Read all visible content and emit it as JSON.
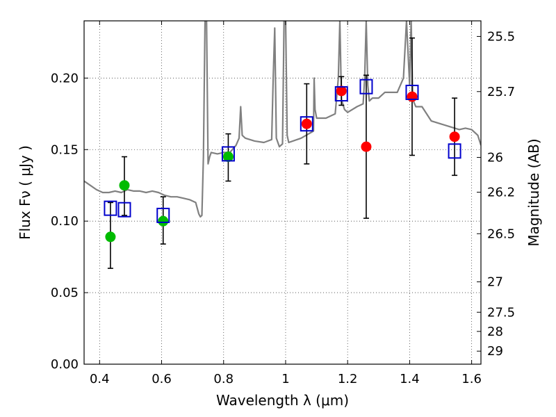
{
  "chart_data": {
    "type": "scatter",
    "xlabel": "Wavelength  λ (μm)",
    "ylabel": "Flux  Fν  ( μJy )",
    "ylabel_right": "Magnitude (AB)",
    "xlim": [
      0.35,
      1.63
    ],
    "ylim": [
      0.0,
      0.24
    ],
    "grid": true,
    "x_ticks": [
      0.4,
      0.6,
      0.8,
      1.0,
      1.2,
      1.4,
      1.6
    ],
    "x_tick_labels": [
      "0.4",
      "0.6",
      "0.8",
      "1",
      "1.2",
      "1.4",
      "1.6"
    ],
    "y_ticks": [
      0.0,
      0.05,
      0.1,
      0.15,
      0.2
    ],
    "y_tick_labels": [
      "0.00",
      "0.05",
      "0.10",
      "0.15",
      "0.20"
    ],
    "right_ticks": [
      {
        "mag": 25.5,
        "label": "25.5"
      },
      {
        "mag": 25.7,
        "label": "25.7"
      },
      {
        "mag": 26.0,
        "label": "26"
      },
      {
        "mag": 26.2,
        "label": "26.2"
      },
      {
        "mag": 26.5,
        "label": "26.5"
      },
      {
        "mag": 27.0,
        "label": "27"
      },
      {
        "mag": 27.5,
        "label": "27.5"
      },
      {
        "mag": 28.0,
        "label": "28"
      },
      {
        "mag": 29.0,
        "label": "29"
      }
    ],
    "series": [
      {
        "name": "model spectrum",
        "kind": "line",
        "color": "#808080",
        "x": [
          0.35,
          0.37,
          0.39,
          0.41,
          0.43,
          0.45,
          0.47,
          0.49,
          0.51,
          0.53,
          0.55,
          0.57,
          0.59,
          0.61,
          0.63,
          0.65,
          0.67,
          0.69,
          0.71,
          0.72,
          0.725,
          0.73,
          0.735,
          0.74,
          0.745,
          0.75,
          0.755,
          0.76,
          0.78,
          0.8,
          0.82,
          0.84,
          0.85,
          0.855,
          0.86,
          0.87,
          0.9,
          0.93,
          0.955,
          0.96,
          0.965,
          0.97,
          0.98,
          0.99,
          0.995,
          1.0,
          1.005,
          1.01,
          1.05,
          1.09,
          1.092,
          1.095,
          1.1,
          1.13,
          1.16,
          1.17,
          1.175,
          1.18,
          1.19,
          1.2,
          1.23,
          1.25,
          1.255,
          1.26,
          1.265,
          1.27,
          1.28,
          1.3,
          1.32,
          1.36,
          1.38,
          1.39,
          1.4,
          1.405,
          1.41,
          1.42,
          1.44,
          1.47,
          1.5,
          1.53,
          1.56,
          1.58,
          1.6,
          1.62,
          1.63
        ],
        "y": [
          0.128,
          0.125,
          0.122,
          0.12,
          0.12,
          0.121,
          0.12,
          0.122,
          0.121,
          0.121,
          0.12,
          0.121,
          0.12,
          0.118,
          0.117,
          0.117,
          0.116,
          0.115,
          0.113,
          0.105,
          0.103,
          0.104,
          0.145,
          0.24,
          0.24,
          0.14,
          0.145,
          0.148,
          0.147,
          0.148,
          0.148,
          0.153,
          0.158,
          0.18,
          0.16,
          0.158,
          0.156,
          0.155,
          0.157,
          0.2,
          0.235,
          0.158,
          0.152,
          0.154,
          0.24,
          0.24,
          0.16,
          0.155,
          0.158,
          0.163,
          0.2,
          0.178,
          0.172,
          0.172,
          0.175,
          0.2,
          0.24,
          0.185,
          0.178,
          0.176,
          0.18,
          0.182,
          0.2,
          0.24,
          0.195,
          0.184,
          0.186,
          0.186,
          0.19,
          0.19,
          0.2,
          0.24,
          0.195,
          0.24,
          0.185,
          0.18,
          0.18,
          0.17,
          0.168,
          0.166,
          0.164,
          0.165,
          0.164,
          0.16,
          0.153
        ]
      },
      {
        "name": "observed (green)",
        "kind": "point",
        "color": "#00bb00",
        "points": [
          {
            "x": 0.435,
            "y": 0.089,
            "err_low": 0.067,
            "err_high": 0.113
          },
          {
            "x": 0.48,
            "y": 0.125,
            "err_low": 0.104,
            "err_high": 0.145
          },
          {
            "x": 0.605,
            "y": 0.1,
            "err_low": 0.084,
            "err_high": 0.117
          },
          {
            "x": 0.815,
            "y": 0.145,
            "err_low": 0.128,
            "err_high": 0.161
          }
        ]
      },
      {
        "name": "observed (red)",
        "kind": "point",
        "color": "#ff0000",
        "points": [
          {
            "x": 1.068,
            "y": 0.168,
            "err_low": 0.14,
            "err_high": 0.196
          },
          {
            "x": 1.18,
            "y": 0.191,
            "err_low": 0.181,
            "err_high": 0.201
          },
          {
            "x": 1.26,
            "y": 0.152,
            "err_low": 0.102,
            "err_high": 0.202
          },
          {
            "x": 1.408,
            "y": 0.187,
            "err_low": 0.146,
            "err_high": 0.228
          },
          {
            "x": 1.545,
            "y": 0.159,
            "err_low": 0.132,
            "err_high": 0.186
          }
        ]
      },
      {
        "name": "model photometry",
        "kind": "square",
        "color": "#0000cc",
        "x": [
          0.435,
          0.48,
          0.605,
          0.815,
          1.068,
          1.18,
          1.26,
          1.408,
          1.545
        ],
        "y": [
          0.109,
          0.108,
          0.104,
          0.147,
          0.168,
          0.189,
          0.194,
          0.19,
          0.149
        ]
      }
    ]
  }
}
